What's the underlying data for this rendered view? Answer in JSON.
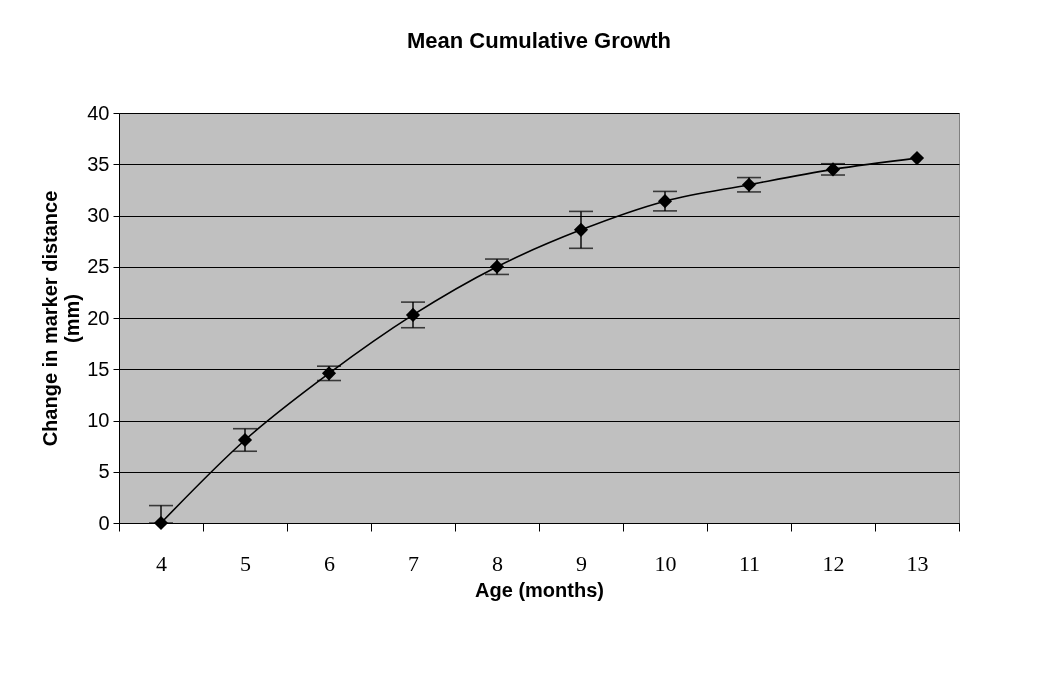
{
  "chart_data": {
    "type": "line",
    "title": "Mean Cumulative Growth",
    "xlabel": "Age (months)",
    "ylabel": "Change in marker distance\n(mm)",
    "categories": [
      "4",
      "5",
      "6",
      "7",
      "8",
      "9",
      "10",
      "11",
      "12",
      "13"
    ],
    "series": [
      {
        "color": "#000000",
        "values": [
          0,
          8.1,
          14.6,
          20.3,
          25.0,
          28.6,
          31.4,
          33.0,
          34.5,
          35.6
        ],
        "errors": [
          [
            0,
            1.7
          ],
          1.1,
          0.7,
          1.25,
          0.75,
          1.8,
          0.95,
          0.7,
          0.55,
          null
        ]
      }
    ],
    "ylim": [
      0,
      40
    ],
    "yticks": [
      0,
      5,
      10,
      15,
      20,
      25,
      30,
      35,
      40
    ],
    "grid": "y",
    "marker": "diamond",
    "line_style": "solid"
  }
}
